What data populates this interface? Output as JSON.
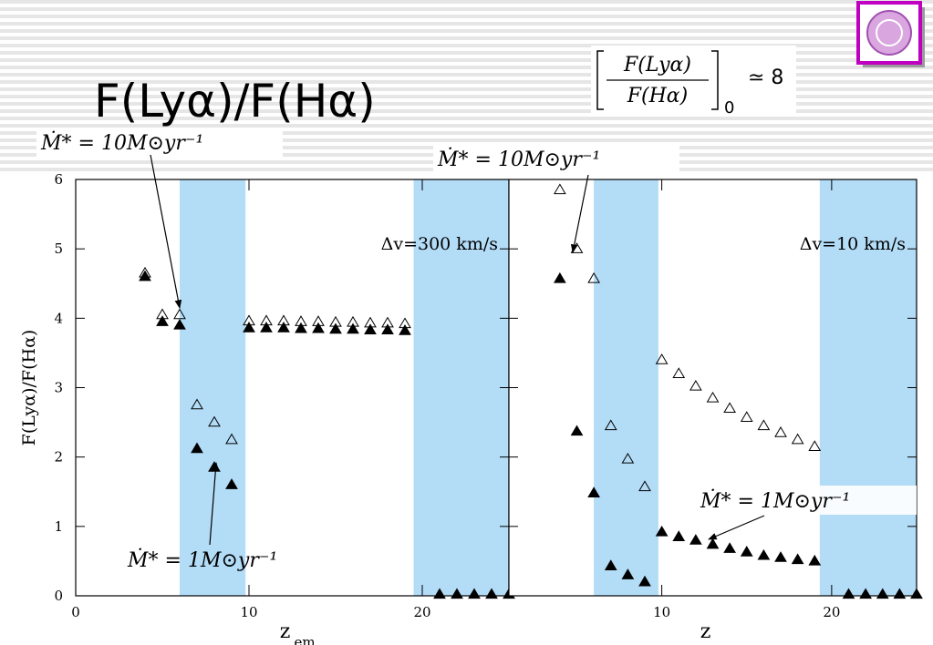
{
  "title": "F(Lyα)/F(Hα)",
  "formula": {
    "numerator": "F(Lyα)",
    "denominator": "F(Hα)",
    "subscript": "0",
    "relation": "≃ 8"
  },
  "annotations": [
    "Ṁ* = 10M⊙yr⁻¹",
    "Ṁ* = 1M⊙yr⁻¹",
    "Ṁ* = 10M⊙yr⁻¹",
    "Ṁ* = 1M⊙yr⁻¹"
  ],
  "chart_data": [
    {
      "type": "scatter",
      "label": "Δv=300 km/s",
      "ylabel": "F(Lyα)/F(Hα)",
      "xlabel": "z",
      "xlabel_sub": "em",
      "xlim": [
        0,
        25
      ],
      "xticks": [
        0,
        10,
        20
      ],
      "ylim": [
        0,
        6
      ],
      "yticks": [
        0,
        1,
        2,
        3,
        4,
        5,
        6
      ],
      "ytick_labels": true,
      "bands": [
        [
          6,
          9.8
        ],
        [
          19.5,
          25
        ]
      ],
      "band_color": "#b3dcf7",
      "series": [
        {
          "marker": "open-triangle",
          "color": "#000000",
          "x": [
            4,
            5,
            6,
            7,
            8,
            9,
            10,
            11,
            12,
            13,
            14,
            15,
            16,
            17,
            18,
            19
          ],
          "values": [
            4.65,
            4.05,
            4.05,
            2.75,
            2.5,
            2.25,
            3.96,
            3.96,
            3.96,
            3.95,
            3.95,
            3.94,
            3.94,
            3.93,
            3.93,
            3.92
          ]
        },
        {
          "marker": "filled-triangle",
          "color": "#000000",
          "x": [
            4,
            5,
            6,
            7,
            8,
            9,
            10,
            11,
            12,
            13,
            14,
            15,
            16,
            17,
            18,
            19,
            21,
            22,
            23,
            24,
            25
          ],
          "values": [
            4.6,
            3.95,
            3.9,
            2.12,
            1.85,
            1.6,
            3.86,
            3.86,
            3.86,
            3.85,
            3.85,
            3.84,
            3.84,
            3.83,
            3.83,
            3.82,
            0.02,
            0.02,
            0.02,
            0.02,
            0.02
          ]
        }
      ]
    },
    {
      "type": "scatter",
      "label": "Δv=10 km/s",
      "xlabel": "z",
      "xlim": [
        1,
        25
      ],
      "xticks": [
        10,
        20
      ],
      "ylim": [
        0,
        6
      ],
      "yticks": [
        0,
        1,
        2,
        3,
        4,
        5,
        6
      ],
      "ytick_labels": false,
      "bands": [
        [
          6,
          9.8
        ],
        [
          19.3,
          25
        ]
      ],
      "band_color": "#b3dcf7",
      "series": [
        {
          "marker": "open-triangle",
          "color": "#000000",
          "x": [
            4,
            5,
            6,
            7,
            8,
            9,
            10,
            11,
            12,
            13,
            14,
            15,
            16,
            17,
            18,
            19
          ],
          "values": [
            5.85,
            5.0,
            4.57,
            2.45,
            1.97,
            1.57,
            3.4,
            3.2,
            3.02,
            2.85,
            2.7,
            2.57,
            2.45,
            2.35,
            2.25,
            2.15
          ]
        },
        {
          "marker": "filled-triangle",
          "color": "#000000",
          "x": [
            4,
            5,
            6,
            7,
            8,
            9,
            10,
            11,
            12,
            13,
            14,
            15,
            16,
            17,
            18,
            19,
            21,
            22,
            23,
            24,
            25
          ],
          "values": [
            4.57,
            2.37,
            1.48,
            0.43,
            0.3,
            0.2,
            0.92,
            0.85,
            0.8,
            0.74,
            0.68,
            0.63,
            0.58,
            0.55,
            0.52,
            0.5,
            0.02,
            0.02,
            0.02,
            0.02,
            0.02
          ]
        }
      ]
    }
  ]
}
